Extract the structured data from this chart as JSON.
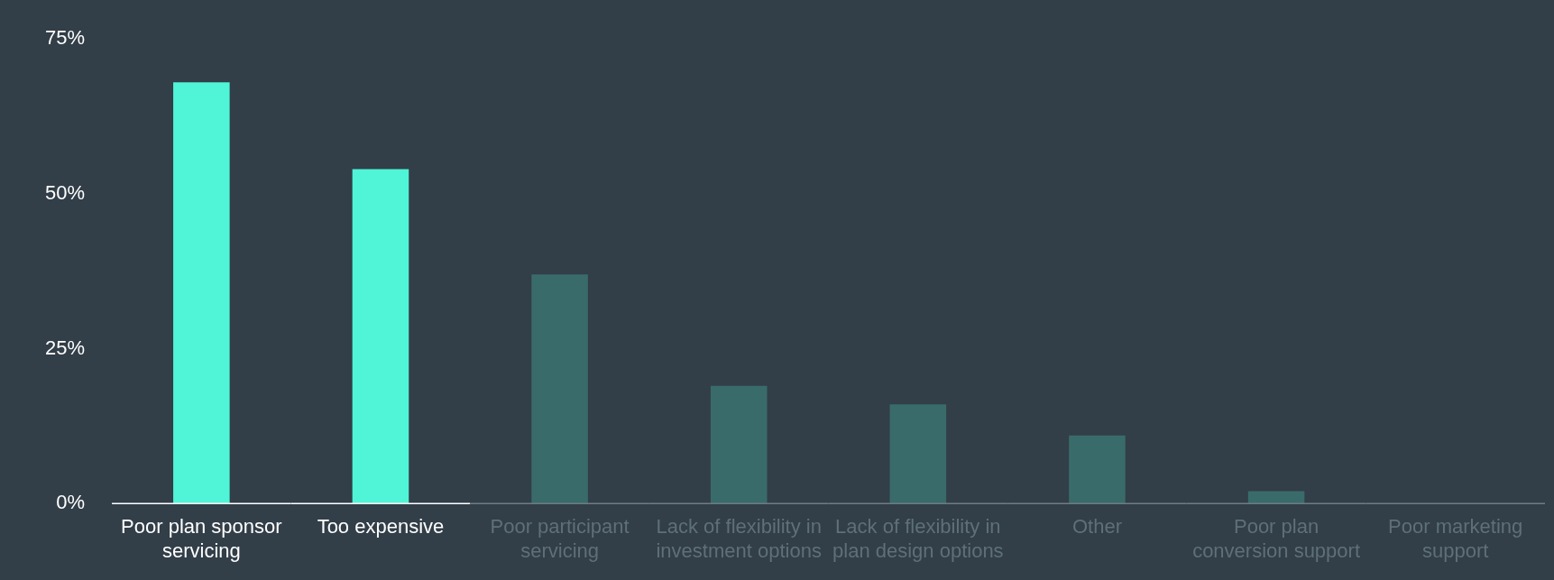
{
  "chart_data": {
    "type": "bar",
    "categories": [
      "Poor plan sponsor servicing",
      "Too expensive",
      "Poor participant servicing",
      "Lack of flexibility in investment options",
      "Lack of flexibility in plan design options",
      "Other",
      "Poor plan conversion support",
      "Poor marketing support"
    ],
    "values": [
      68,
      54,
      37,
      19,
      16,
      11,
      2,
      0
    ],
    "colors": [
      "#4ff5d6",
      "#4ff5d6",
      "#3a6b6b",
      "#3a6b6b",
      "#3a6b6b",
      "#3a6b6b",
      "#3a6b6b",
      "#3a6b6b"
    ],
    "ylim": [
      0,
      75
    ],
    "yticks": [
      {
        "value": 0,
        "label": "0%"
      },
      {
        "value": 25,
        "label": "25%"
      },
      {
        "value": 50,
        "label": "50%"
      },
      {
        "value": 75,
        "label": "75%"
      }
    ],
    "grid": false,
    "legend": false
  }
}
